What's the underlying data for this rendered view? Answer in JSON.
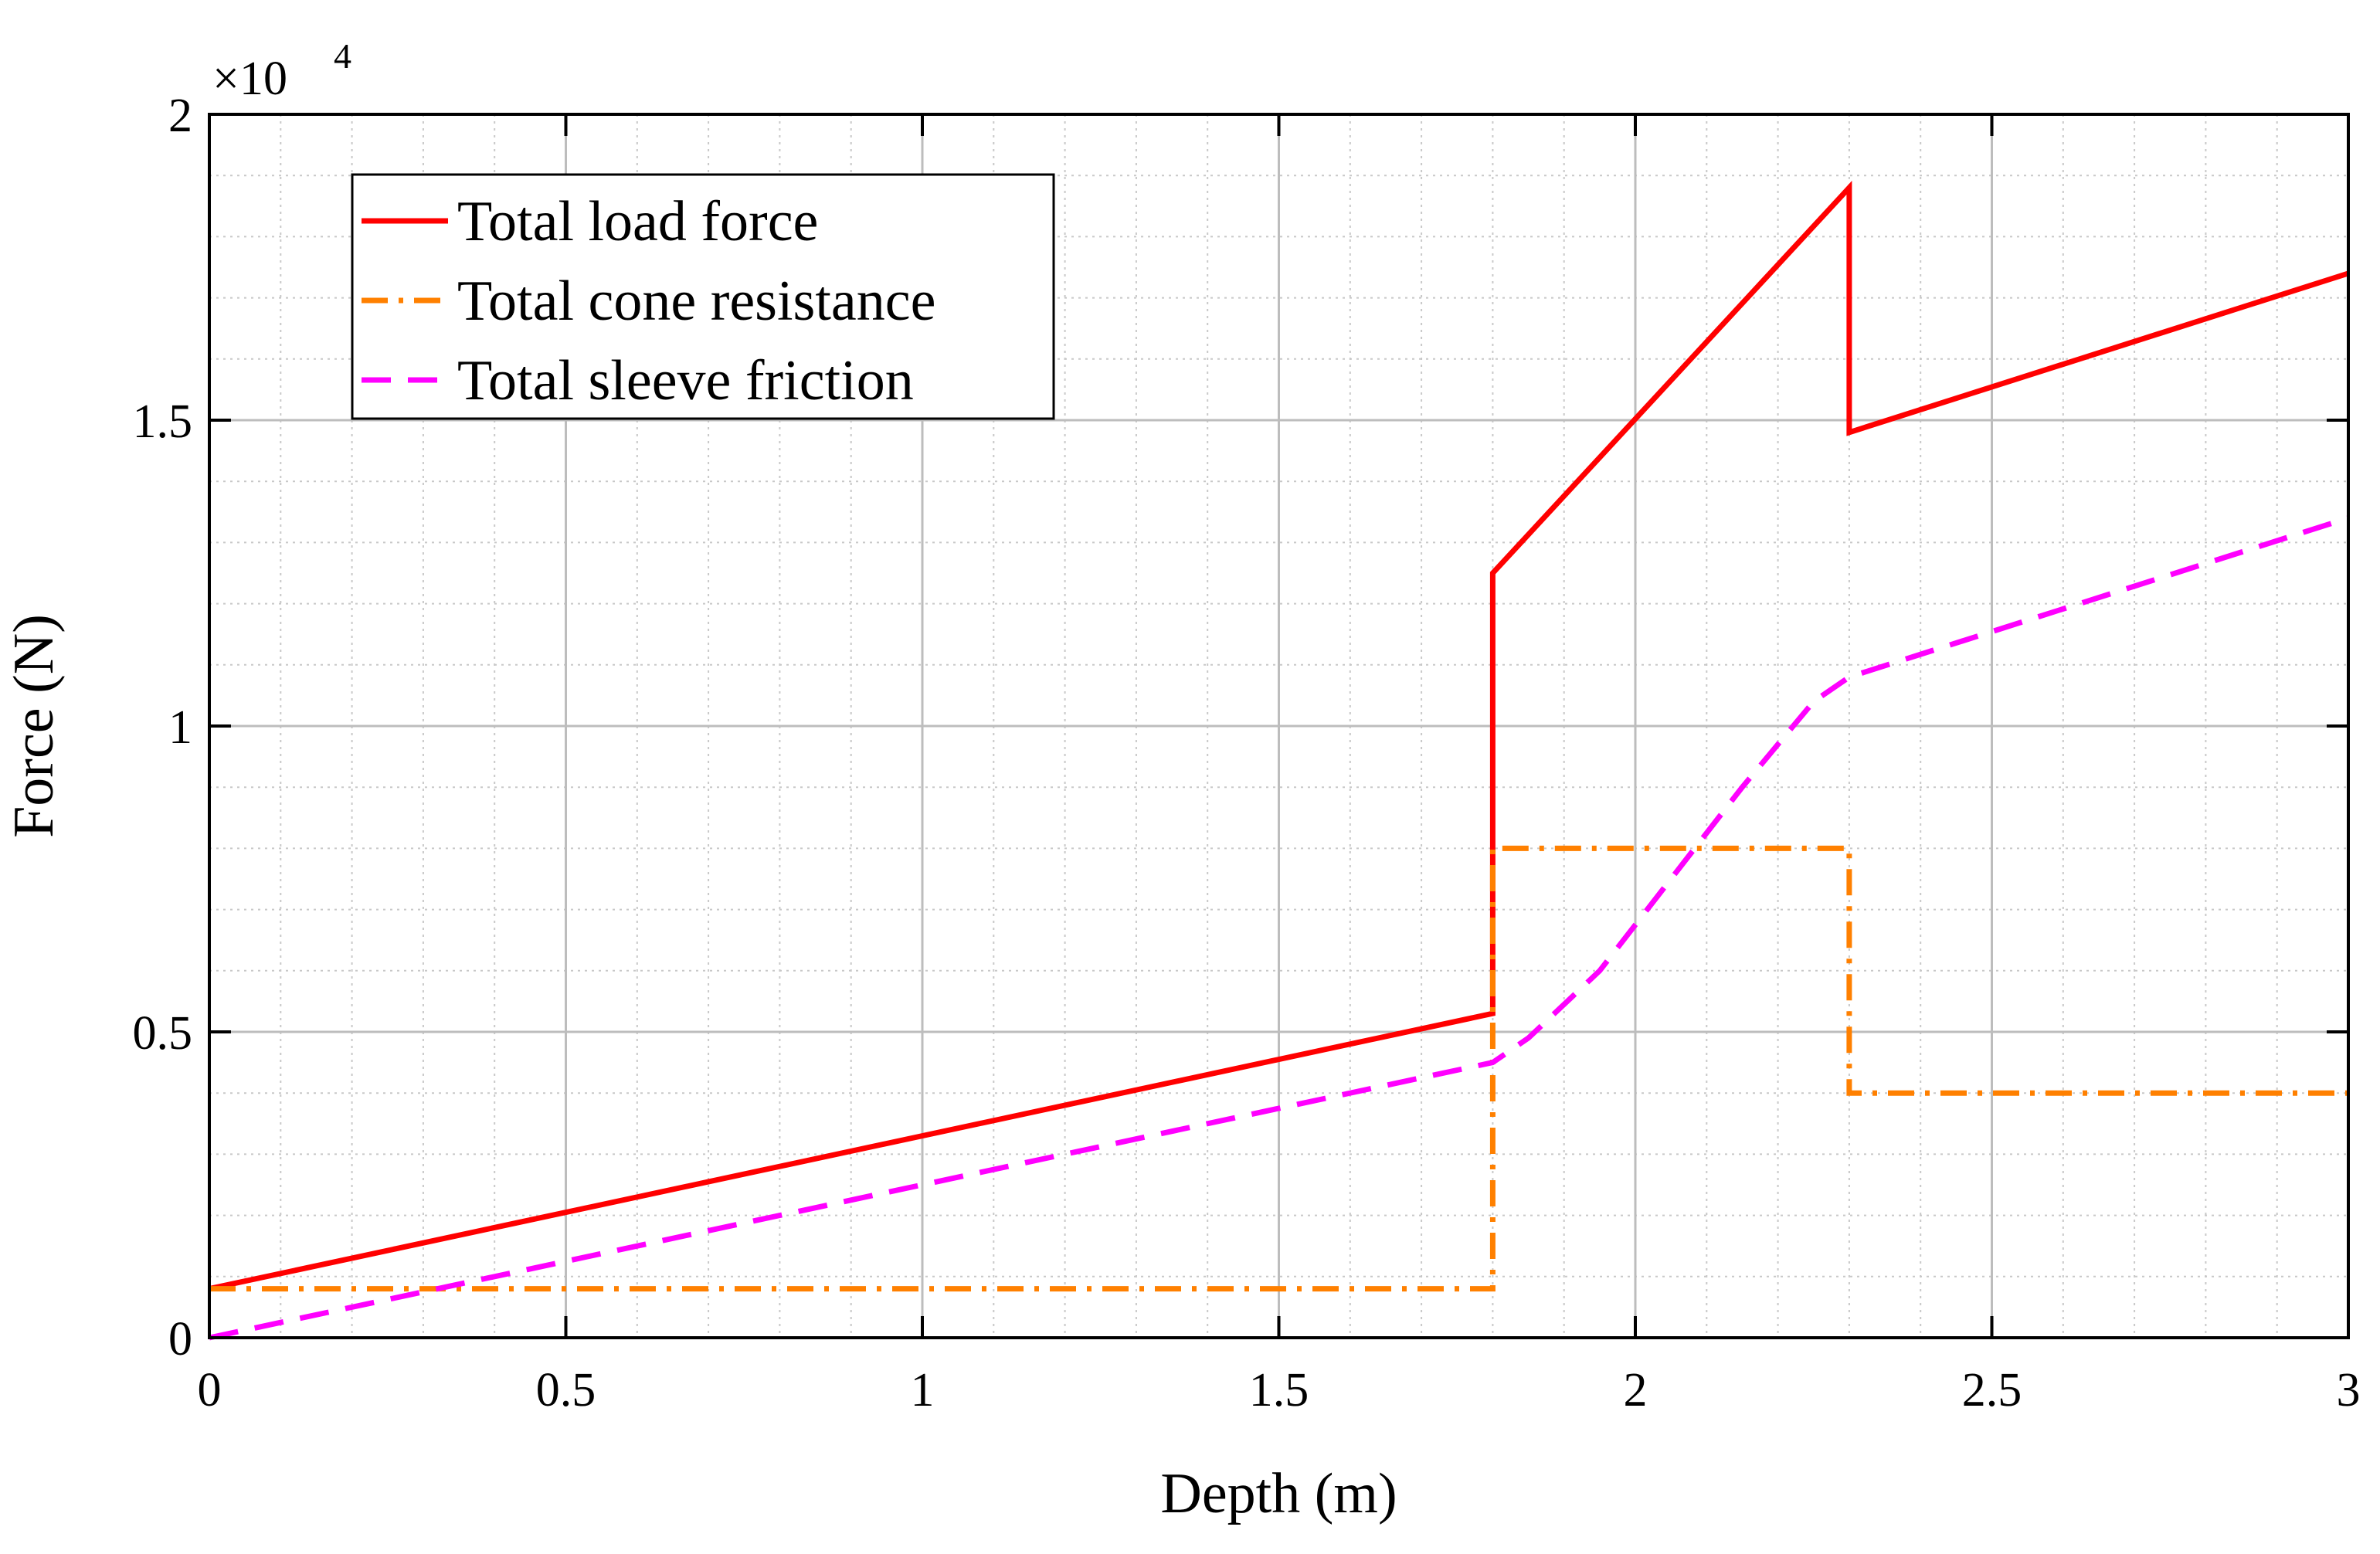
{
  "chart_data": {
    "type": "line",
    "xlabel": "Depth (m)",
    "ylabel": "Force (N)",
    "xlim": [
      0,
      3
    ],
    "ylim": [
      0,
      20000
    ],
    "x_ticks": [
      0,
      0.5,
      1,
      1.5,
      2,
      2.5,
      3
    ],
    "x_tick_labels": [
      "0",
      "0.5",
      "1",
      "1.5",
      "2",
      "2.5",
      "3"
    ],
    "y_ticks": [
      0,
      5000,
      10000,
      15000,
      20000
    ],
    "y_tick_labels": [
      "0",
      "0.5",
      "1",
      "1.5",
      "2"
    ],
    "y_exponent_prefix": "×10",
    "y_exponent": "4",
    "grid": true,
    "minor_grid": true,
    "legend_position": "top-left",
    "series": [
      {
        "name": "Total load force",
        "color": "#ff0000",
        "style": "solid",
        "points": [
          [
            0,
            800
          ],
          [
            1.8,
            5300
          ],
          [
            1.8,
            12500
          ],
          [
            2.3,
            18800
          ],
          [
            2.3,
            14800
          ],
          [
            3,
            17400
          ]
        ]
      },
      {
        "name": "Total cone resistance",
        "color": "#ff8000",
        "style": "dashdot",
        "points": [
          [
            0,
            800
          ],
          [
            1.8,
            800
          ],
          [
            1.8,
            8000
          ],
          [
            2.3,
            8000
          ],
          [
            2.3,
            4000
          ],
          [
            3,
            4000
          ]
        ]
      },
      {
        "name": "Total sleeve friction",
        "color": "#ff00ff",
        "style": "dashed",
        "points": [
          [
            0,
            0
          ],
          [
            0.5,
            1250
          ],
          [
            1.0,
            2500
          ],
          [
            1.5,
            3750
          ],
          [
            1.8,
            4500
          ],
          [
            1.85,
            4900
          ],
          [
            1.95,
            6000
          ],
          [
            2.05,
            7500
          ],
          [
            2.15,
            9000
          ],
          [
            2.25,
            10400
          ],
          [
            2.3,
            10800
          ],
          [
            3,
            13400
          ]
        ]
      }
    ]
  }
}
